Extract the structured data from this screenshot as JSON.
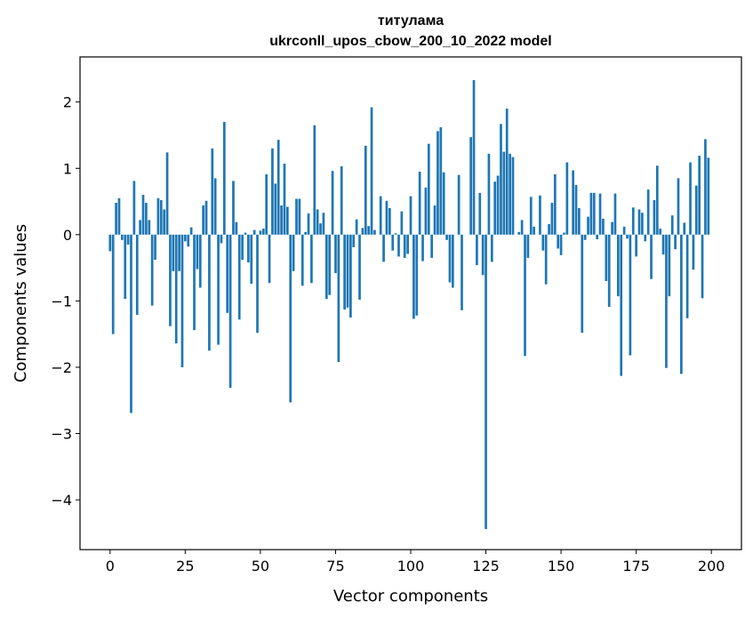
{
  "chart_data": {
    "type": "bar",
    "title": "титулама",
    "subtitle": "ukrconll_upos_cbow_200_10_2022 model",
    "xlabel": "Vector components",
    "ylabel": "Components values",
    "xlim": [
      -10,
      210
    ],
    "ylim": [
      -4.75,
      2.68
    ],
    "xticks": [
      0,
      25,
      50,
      75,
      100,
      125,
      150,
      175,
      200
    ],
    "xtick_labels": [
      "0",
      "25",
      "50",
      "75",
      "100",
      "125",
      "150",
      "175",
      "200"
    ],
    "yticks": [
      -4,
      -3,
      -2,
      -1,
      0,
      1,
      2
    ],
    "ytick_labels": [
      "−4",
      "−3",
      "−2",
      "−1",
      "0",
      "1",
      "2"
    ],
    "grid": false,
    "bar_color": "#1f77b4",
    "x": [
      0,
      1,
      2,
      3,
      4,
      5,
      6,
      7,
      8,
      9,
      10,
      11,
      12,
      13,
      14,
      15,
      16,
      17,
      18,
      19,
      20,
      21,
      22,
      23,
      24,
      25,
      26,
      27,
      28,
      29,
      30,
      31,
      32,
      33,
      34,
      35,
      36,
      37,
      38,
      39,
      40,
      41,
      42,
      43,
      44,
      45,
      46,
      47,
      48,
      49,
      50,
      51,
      52,
      53,
      54,
      55,
      56,
      57,
      58,
      59,
      60,
      61,
      62,
      63,
      64,
      65,
      66,
      67,
      68,
      69,
      70,
      71,
      72,
      73,
      74,
      75,
      76,
      77,
      78,
      79,
      80,
      81,
      82,
      83,
      84,
      85,
      86,
      87,
      88,
      89,
      90,
      91,
      92,
      93,
      94,
      95,
      96,
      97,
      98,
      99,
      100,
      101,
      102,
      103,
      104,
      105,
      106,
      107,
      108,
      109,
      110,
      111,
      112,
      113,
      114,
      115,
      116,
      117,
      118,
      119,
      120,
      121,
      122,
      123,
      124,
      125,
      126,
      127,
      128,
      129,
      130,
      131,
      132,
      133,
      134,
      135,
      136,
      137,
      138,
      139,
      140,
      141,
      142,
      143,
      144,
      145,
      146,
      147,
      148,
      149,
      150,
      151,
      152,
      153,
      154,
      155,
      156,
      157,
      158,
      159,
      160,
      161,
      162,
      163,
      164,
      165,
      166,
      167,
      168,
      169,
      170,
      171,
      172,
      173,
      174,
      175,
      176,
      177,
      178,
      179,
      180,
      181,
      182,
      183,
      184,
      185,
      186,
      187,
      188,
      189,
      190,
      191,
      192,
      193,
      194,
      195,
      196,
      197,
      198,
      199
    ],
    "values": [
      -0.25,
      -1.5,
      0.48,
      0.55,
      -0.08,
      -0.97,
      -0.15,
      -2.69,
      0.81,
      -1.21,
      0.22,
      0.6,
      0.48,
      0.22,
      -1.07,
      -0.38,
      0.55,
      0.52,
      0.38,
      1.24,
      -1.38,
      -0.55,
      -1.64,
      -0.55,
      -2.0,
      -0.1,
      -0.18,
      0.11,
      -1.44,
      -0.52,
      -0.8,
      0.44,
      0.51,
      -1.75,
      1.3,
      0.85,
      -1.66,
      -0.13,
      1.7,
      -1.18,
      -2.31,
      0.81,
      0.19,
      -1.28,
      -0.38,
      0.03,
      -0.42,
      -0.74,
      0.07,
      -1.48,
      0.06,
      0.09,
      0.91,
      -0.73,
      1.3,
      0.77,
      1.43,
      0.44,
      1.07,
      0.42,
      -2.53,
      -0.55,
      0.54,
      0.54,
      -0.77,
      0.04,
      0.32,
      -0.73,
      1.65,
      0.38,
      0.17,
      0.33,
      -0.97,
      -0.91,
      0.96,
      -0.58,
      -1.92,
      1.03,
      -1.13,
      -1.1,
      -1.25,
      -0.19,
      0.23,
      -0.98,
      0.1,
      1.34,
      0.13,
      1.92,
      0.07,
      0.0,
      0.58,
      -0.41,
      0.51,
      0.4,
      -0.24,
      0.02,
      -0.33,
      0.35,
      -0.35,
      -0.29,
      0.58,
      -1.27,
      -1.22,
      0.95,
      -0.4,
      0.71,
      1.37,
      -0.35,
      0.44,
      1.56,
      1.62,
      0.94,
      -0.08,
      -0.72,
      -0.8,
      0.0,
      0.9,
      -1.14,
      0.0,
      0.0,
      1.47,
      2.33,
      -0.46,
      0.63,
      -0.61,
      -4.44,
      1.22,
      -0.41,
      0.8,
      0.89,
      1.67,
      1.25,
      1.9,
      1.22,
      1.17,
      0.0,
      0.04,
      0.22,
      -1.83,
      -0.35,
      0.57,
      0.12,
      0.0,
      0.59,
      -0.24,
      -0.75,
      0.16,
      0.48,
      0.91,
      -0.21,
      -0.31,
      0.03,
      1.09,
      0.0,
      0.97,
      0.75,
      0.4,
      -1.48,
      -0.08,
      0.27,
      0.63,
      0.63,
      -0.07,
      0.62,
      0.24,
      -0.7,
      -1.09,
      0.19,
      0.62,
      -0.93,
      -2.13,
      0.12,
      -0.06,
      -1.82,
      0.41,
      -0.33,
      0.38,
      0.33,
      -0.1,
      0.68,
      -0.67,
      0.52,
      1.04,
      0.09,
      -0.3,
      -2.01,
      -0.93,
      0.29,
      -0.22,
      0.85,
      -2.1,
      0.18,
      -1.26,
      1.09,
      -0.53,
      0.74,
      1.19,
      -0.96,
      1.44,
      1.16
    ]
  }
}
